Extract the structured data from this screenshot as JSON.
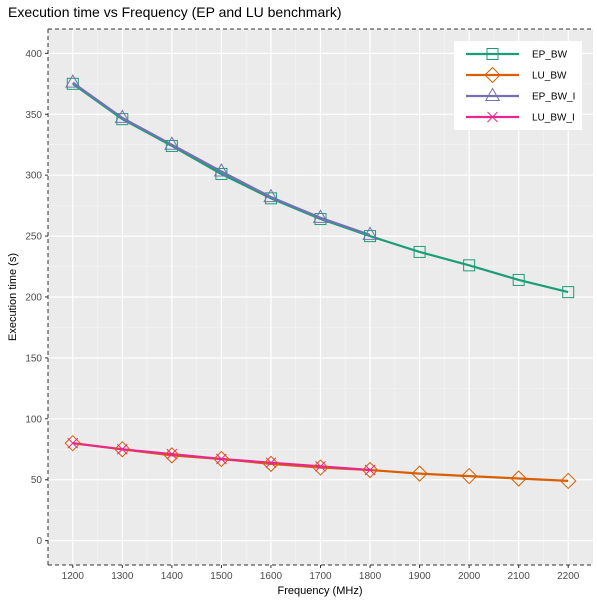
{
  "chart_data": {
    "type": "line",
    "title": "Execution time vs Frequency (EP and LU benchmark)",
    "xlabel": "Frequency (MHz)",
    "ylabel": "Execution time (s)",
    "xlim": [
      1150,
      2250
    ],
    "ylim": [
      -20,
      420
    ],
    "xticks": [
      1200,
      1300,
      1400,
      1500,
      1600,
      1700,
      1800,
      1900,
      2000,
      2100,
      2200
    ],
    "yticks": [
      0,
      50,
      100,
      150,
      200,
      250,
      300,
      350,
      400
    ],
    "grid": true,
    "legend_position": "top-right",
    "series": [
      {
        "name": "EP_BW",
        "color": "#1b9e77",
        "marker": "square",
        "x": [
          1200,
          1300,
          1400,
          1500,
          1600,
          1700,
          1800,
          1900,
          2000,
          2100,
          2200
        ],
        "y": [
          375,
          346,
          324,
          301,
          281,
          264,
          250,
          237,
          226,
          214,
          204
        ]
      },
      {
        "name": "LU_BW",
        "color": "#d95f02",
        "marker": "diamond",
        "x": [
          1200,
          1300,
          1400,
          1500,
          1600,
          1700,
          1800,
          1900,
          2000,
          2100,
          2200
        ],
        "y": [
          80,
          75,
          70,
          67,
          63,
          60,
          58,
          55,
          53,
          51,
          49
        ]
      },
      {
        "name": "EP_BW_I",
        "color": "#7570b3",
        "marker": "triangle",
        "x": [
          1200,
          1300,
          1400,
          1500,
          1600,
          1700,
          1800
        ],
        "y": [
          376,
          347,
          325,
          303,
          282,
          265,
          251
        ]
      },
      {
        "name": "LU_BW_I",
        "color": "#e7298a",
        "marker": "cross",
        "x": [
          1200,
          1300,
          1400,
          1500,
          1600,
          1700,
          1800
        ],
        "y": [
          80,
          75,
          71,
          67,
          64,
          61,
          58
        ]
      }
    ]
  }
}
